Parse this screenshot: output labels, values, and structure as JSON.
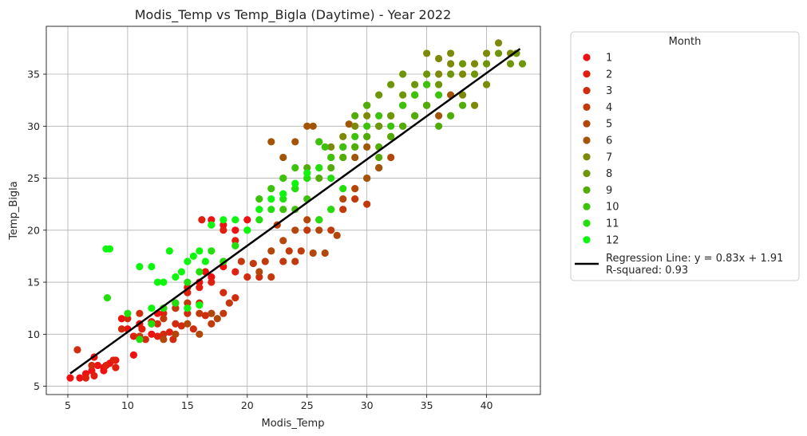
{
  "chart_data": {
    "type": "scatter",
    "title": "Modis_Temp vs Temp_Bigla (Daytime) - Year 2022",
    "xlabel": "Modis_Temp",
    "ylabel": "Temp_Bigla",
    "xlim": [
      3.2,
      44.5
    ],
    "ylim": [
      4.2,
      39.6
    ],
    "xticks": [
      "5",
      "10",
      "15",
      "20",
      "25",
      "30",
      "35",
      "40"
    ],
    "yticks": [
      "5",
      "10",
      "15",
      "20",
      "25",
      "30",
      "35"
    ],
    "grid": true,
    "legend": {
      "title": "Month",
      "placement": "outside-right",
      "regression_label_line1": "Regression Line: y = 0.83x + 1.91",
      "regression_label_line2": "R-squared: 0.93"
    },
    "regression": {
      "slope": 0.83,
      "intercept": 1.91,
      "x_range": [
        5.2,
        42.8
      ],
      "color": "#000000"
    },
    "series": [
      {
        "name": "1",
        "color": "#ee1111",
        "points": [
          [
            5.2,
            5.8
          ],
          [
            6,
            5.8
          ],
          [
            6.5,
            6.2
          ],
          [
            7,
            6.5
          ],
          [
            7.5,
            7
          ],
          [
            8,
            6.8
          ],
          [
            8.5,
            7.2
          ],
          [
            9,
            7.5
          ],
          [
            7.2,
            7.8
          ],
          [
            9.5,
            11.5
          ],
          [
            10,
            10.5
          ],
          [
            11,
            11
          ],
          [
            12,
            10
          ],
          [
            12.5,
            12
          ],
          [
            13,
            12.5
          ],
          [
            14,
            13
          ],
          [
            15,
            14.5
          ],
          [
            16,
            15
          ],
          [
            16.5,
            16
          ],
          [
            17,
            15.5
          ],
          [
            18,
            16.5
          ],
          [
            17,
            21
          ],
          [
            18,
            20.5
          ],
          [
            19,
            20
          ],
          [
            20,
            21
          ],
          [
            10.5,
            8
          ],
          [
            8,
            6.5
          ]
        ]
      },
      {
        "name": "2",
        "color": "#e01f0f",
        "points": [
          [
            6.5,
            5.8
          ],
          [
            7.2,
            6
          ],
          [
            8.2,
            7
          ],
          [
            9,
            6.8
          ],
          [
            10.5,
            9.8
          ],
          [
            11.2,
            10.5
          ],
          [
            12,
            11.2
          ],
          [
            13,
            12
          ],
          [
            14,
            12.5
          ],
          [
            15,
            14
          ],
          [
            16,
            14.5
          ],
          [
            17,
            15
          ],
          [
            18,
            17
          ],
          [
            19,
            16
          ],
          [
            16.2,
            21
          ],
          [
            18,
            20
          ],
          [
            19,
            19
          ],
          [
            12.5,
            9.8
          ],
          [
            13.5,
            10.2
          ],
          [
            8.8,
            7.5
          ]
        ]
      },
      {
        "name": "3",
        "color": "#d12c0d",
        "points": [
          [
            5.8,
            8.5
          ],
          [
            7,
            7
          ],
          [
            9.5,
            10.5
          ],
          [
            10,
            11.5
          ],
          [
            11,
            12
          ],
          [
            11.5,
            9.5
          ],
          [
            12.5,
            11
          ],
          [
            13,
            10
          ],
          [
            14,
            11
          ],
          [
            15,
            12
          ],
          [
            16,
            13
          ],
          [
            17,
            12
          ],
          [
            18,
            14
          ],
          [
            19,
            13.5
          ],
          [
            20,
            15.5
          ],
          [
            21,
            15.5
          ],
          [
            13.8,
            9.5
          ],
          [
            14.5,
            10.8
          ],
          [
            15.5,
            10.5
          ],
          [
            16.5,
            11.8
          ]
        ]
      },
      {
        "name": "4",
        "color": "#c23a0b",
        "points": [
          [
            11,
            9.8
          ],
          [
            12,
            11
          ],
          [
            13,
            11.5
          ],
          [
            14,
            12.5
          ],
          [
            15,
            13
          ],
          [
            16,
            12
          ],
          [
            17,
            11
          ],
          [
            18,
            12
          ],
          [
            18.5,
            13
          ],
          [
            19.5,
            17
          ],
          [
            20.5,
            16.8
          ],
          [
            21.5,
            17
          ],
          [
            22.5,
            20.5
          ],
          [
            23.5,
            18
          ],
          [
            24.5,
            18
          ],
          [
            25,
            20
          ],
          [
            26,
            21
          ],
          [
            27,
            20
          ],
          [
            28,
            22
          ],
          [
            29,
            23
          ],
          [
            30,
            22.5
          ],
          [
            22,
            15.5
          ],
          [
            23,
            17
          ],
          [
            24,
            17
          ]
        ]
      },
      {
        "name": "5",
        "color": "#b24709",
        "points": [
          [
            13,
            9.5
          ],
          [
            14,
            10
          ],
          [
            15,
            11
          ],
          [
            16,
            10
          ],
          [
            17,
            12
          ],
          [
            17.5,
            11.5
          ],
          [
            21,
            16
          ],
          [
            22,
            18
          ],
          [
            23,
            19
          ],
          [
            24,
            20
          ],
          [
            25,
            21
          ],
          [
            26,
            20
          ],
          [
            27,
            22
          ],
          [
            28,
            23
          ],
          [
            29,
            24
          ],
          [
            30,
            25
          ],
          [
            31,
            26
          ],
          [
            32,
            27
          ],
          [
            26.5,
            17.8
          ],
          [
            25.5,
            17.8
          ],
          [
            27.5,
            19.5
          ]
        ]
      },
      {
        "name": "6",
        "color": "#a35507",
        "points": [
          [
            22,
            28.5
          ],
          [
            23,
            27
          ],
          [
            24,
            28.5
          ],
          [
            25,
            30
          ],
          [
            27,
            27
          ],
          [
            28,
            28
          ],
          [
            29,
            27
          ],
          [
            30,
            28
          ],
          [
            31,
            26
          ],
          [
            32,
            29
          ],
          [
            33,
            30
          ],
          [
            34,
            31
          ],
          [
            35,
            32
          ],
          [
            36,
            31
          ],
          [
            37,
            33
          ],
          [
            28.5,
            30.2
          ],
          [
            25.5,
            30
          ],
          [
            26,
            28.5
          ],
          [
            30,
            25
          ]
        ]
      },
      {
        "name": "7",
        "color": "#7c8a08",
        "points": [
          [
            27,
            28
          ],
          [
            28,
            29
          ],
          [
            29,
            30
          ],
          [
            30,
            31
          ],
          [
            31,
            30
          ],
          [
            32,
            31
          ],
          [
            33,
            32
          ],
          [
            34,
            33
          ],
          [
            35,
            34
          ],
          [
            36,
            35
          ],
          [
            37,
            36
          ],
          [
            38,
            35
          ],
          [
            39,
            36
          ],
          [
            40,
            37
          ],
          [
            41,
            38
          ],
          [
            42,
            37
          ],
          [
            35,
            37
          ],
          [
            36,
            36.5
          ],
          [
            37,
            37
          ],
          [
            38,
            33
          ],
          [
            39,
            32
          ],
          [
            40,
            34
          ]
        ]
      },
      {
        "name": "8",
        "color": "#6e9608",
        "points": [
          [
            28,
            27
          ],
          [
            29,
            28
          ],
          [
            30,
            29
          ],
          [
            31,
            30
          ],
          [
            32,
            31
          ],
          [
            33,
            33
          ],
          [
            34,
            34
          ],
          [
            35,
            35
          ],
          [
            36,
            34
          ],
          [
            37,
            35
          ],
          [
            38,
            36
          ],
          [
            39,
            35
          ],
          [
            40,
            36
          ],
          [
            41,
            37
          ],
          [
            42,
            36
          ],
          [
            42.5,
            37
          ],
          [
            43,
            36
          ],
          [
            32,
            34
          ],
          [
            33,
            35
          ],
          [
            30,
            32
          ],
          [
            31,
            33
          ]
        ]
      },
      {
        "name": "9",
        "color": "#52ac08",
        "points": [
          [
            23,
            25
          ],
          [
            24,
            24
          ],
          [
            25,
            26
          ],
          [
            26,
            25
          ],
          [
            27,
            26
          ],
          [
            28,
            27
          ],
          [
            29,
            28
          ],
          [
            30,
            29
          ],
          [
            31,
            28
          ],
          [
            32,
            29
          ],
          [
            33,
            30
          ],
          [
            34,
            31
          ],
          [
            35,
            32
          ],
          [
            36,
            30
          ],
          [
            37,
            31
          ],
          [
            38,
            32
          ],
          [
            30,
            32
          ],
          [
            29,
            31
          ],
          [
            31,
            27
          ]
        ]
      },
      {
        "name": "10",
        "color": "#3cc20a",
        "points": [
          [
            21,
            23
          ],
          [
            22,
            24
          ],
          [
            23,
            25
          ],
          [
            24,
            26
          ],
          [
            25,
            25
          ],
          [
            26,
            26
          ],
          [
            27,
            27
          ],
          [
            28,
            28
          ],
          [
            29,
            29
          ],
          [
            30,
            30
          ],
          [
            31,
            31
          ],
          [
            32,
            30
          ],
          [
            33,
            32
          ],
          [
            34,
            33
          ],
          [
            35,
            34
          ],
          [
            36,
            33
          ],
          [
            26,
            28.5
          ],
          [
            26.5,
            28
          ],
          [
            25,
            23
          ],
          [
            24,
            22
          ],
          [
            23,
            22
          ]
        ]
      },
      {
        "name": "11",
        "color": "#22de0c",
        "points": [
          [
            8.3,
            13.5
          ],
          [
            10,
            12
          ],
          [
            11,
            9.5
          ],
          [
            12,
            11
          ],
          [
            13,
            12.5
          ],
          [
            14,
            13
          ],
          [
            15,
            15
          ],
          [
            16,
            16
          ],
          [
            17,
            18
          ],
          [
            18,
            17
          ],
          [
            19,
            18.5
          ],
          [
            20,
            20
          ],
          [
            21,
            21
          ],
          [
            22,
            22
          ],
          [
            23,
            23
          ],
          [
            24,
            24
          ],
          [
            25,
            25
          ],
          [
            26,
            26
          ],
          [
            27,
            25
          ],
          [
            28,
            24
          ],
          [
            26,
            21
          ],
          [
            27,
            22
          ]
        ]
      },
      {
        "name": "12",
        "color": "#0ef60e",
        "points": [
          [
            8.2,
            18.2
          ],
          [
            8.5,
            18.2
          ],
          [
            11,
            16.5
          ],
          [
            12,
            16.5
          ],
          [
            12.5,
            15
          ],
          [
            13,
            15
          ],
          [
            14,
            15.5
          ],
          [
            14.5,
            16
          ],
          [
            15,
            17
          ],
          [
            15.5,
            17.5
          ],
          [
            16,
            18
          ],
          [
            16.5,
            17
          ],
          [
            17,
            20.5
          ],
          [
            18,
            21
          ],
          [
            19,
            21
          ],
          [
            20,
            20
          ],
          [
            21,
            22
          ],
          [
            22,
            23
          ],
          [
            23,
            23.5
          ],
          [
            24,
            24.5
          ],
          [
            25,
            25.5
          ],
          [
            13.5,
            18
          ],
          [
            15,
            12.5
          ],
          [
            16,
            12.8
          ],
          [
            12,
            12.5
          ]
        ]
      }
    ]
  }
}
